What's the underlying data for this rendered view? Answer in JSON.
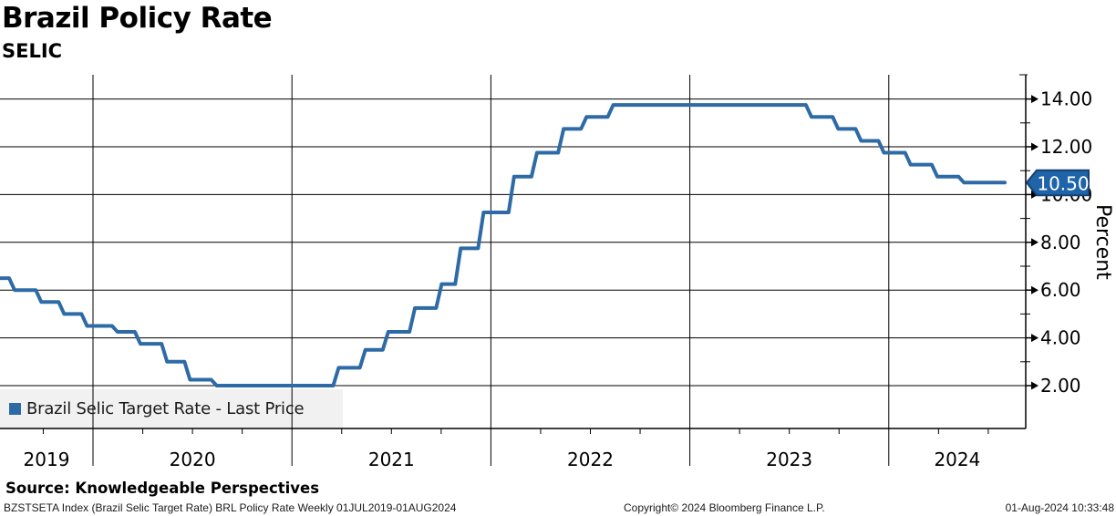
{
  "header": {
    "title": "Brazil Policy Rate",
    "subtitle": "SELIC"
  },
  "legend": {
    "label": "Brazil Selic Target Rate - Last Price",
    "marker_color": "#2e6ba6"
  },
  "y_axis": {
    "title": "Percent",
    "labels": [
      "14.00",
      "12.00",
      "10.00",
      "8.00",
      "6.00",
      "4.00",
      "2.00"
    ],
    "label_values": [
      14,
      12,
      10,
      8,
      6,
      4,
      2
    ],
    "minor_values": [
      13,
      11,
      9,
      7,
      5,
      3
    ]
  },
  "x_axis": {
    "year_labels": [
      "2019",
      "2020",
      "2021",
      "2022",
      "2023",
      "2024"
    ]
  },
  "callout": {
    "label": "10.50",
    "value": 10.5,
    "fill": "#1f64a8",
    "border": "#173f70",
    "text_color": "#ffffff"
  },
  "colors": {
    "line": "#2e6ba6",
    "grid": "#000000",
    "legend_bg": "#f1f1f1"
  },
  "source_line": "Source: Knowledgeable Perspectives",
  "footer": {
    "left": "BZSTSETA Index (Brazil Selic Target Rate) BRL Policy Rate  Weekly 01JUL2019-01AUG2024",
    "center": "Copyright© 2024 Bloomberg Finance L.P.",
    "right": "01-Aug-2024 10:33:48"
  },
  "chart_data": {
    "type": "line",
    "step": true,
    "title": "Brazil Policy Rate",
    "subtitle": "SELIC",
    "ylabel": "Percent",
    "ylim": [
      0.25,
      14.9
    ],
    "yticks_major": [
      2,
      4,
      6,
      8,
      10,
      12,
      14
    ],
    "x_range": [
      "2019-07-01",
      "2024-08-01"
    ],
    "frequency": "Weekly",
    "last_price": 10.5,
    "series": [
      {
        "name": "Brazil Selic Target Rate - Last Price",
        "color": "#2e6ba6",
        "points": [
          {
            "date": "2019-07-01",
            "value": 6.5
          },
          {
            "date": "2019-07-31",
            "value": 6.0
          },
          {
            "date": "2019-09-18",
            "value": 5.5
          },
          {
            "date": "2019-10-30",
            "value": 5.0
          },
          {
            "date": "2019-12-11",
            "value": 4.5
          },
          {
            "date": "2020-02-05",
            "value": 4.25
          },
          {
            "date": "2020-03-18",
            "value": 3.75
          },
          {
            "date": "2020-05-06",
            "value": 3.0
          },
          {
            "date": "2020-06-17",
            "value": 2.25
          },
          {
            "date": "2020-08-05",
            "value": 2.0
          },
          {
            "date": "2021-03-17",
            "value": 2.75
          },
          {
            "date": "2021-05-05",
            "value": 3.5
          },
          {
            "date": "2021-06-16",
            "value": 4.25
          },
          {
            "date": "2021-08-04",
            "value": 5.25
          },
          {
            "date": "2021-09-22",
            "value": 6.25
          },
          {
            "date": "2021-10-27",
            "value": 7.75
          },
          {
            "date": "2021-12-08",
            "value": 9.25
          },
          {
            "date": "2022-02-02",
            "value": 10.75
          },
          {
            "date": "2022-03-16",
            "value": 11.75
          },
          {
            "date": "2022-05-04",
            "value": 12.75
          },
          {
            "date": "2022-06-15",
            "value": 13.25
          },
          {
            "date": "2022-08-03",
            "value": 13.75
          },
          {
            "date": "2023-08-02",
            "value": 13.25
          },
          {
            "date": "2023-09-20",
            "value": 12.75
          },
          {
            "date": "2023-11-01",
            "value": 12.25
          },
          {
            "date": "2023-12-13",
            "value": 11.75
          },
          {
            "date": "2024-01-31",
            "value": 11.25
          },
          {
            "date": "2024-03-20",
            "value": 10.75
          },
          {
            "date": "2024-05-08",
            "value": 10.5
          },
          {
            "date": "2024-08-01",
            "value": 10.5
          }
        ]
      }
    ]
  }
}
